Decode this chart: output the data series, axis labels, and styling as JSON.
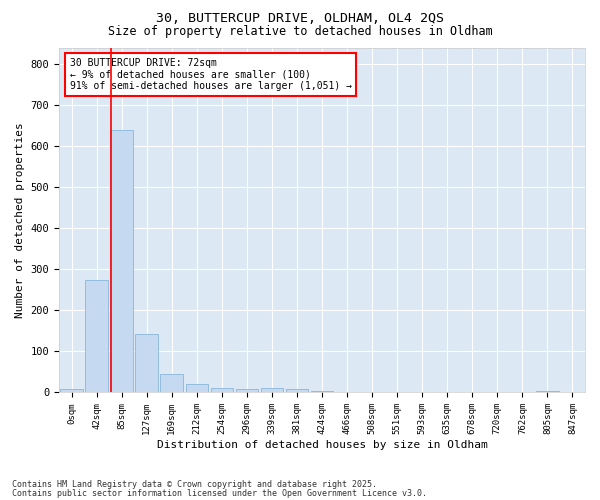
{
  "title1": "30, BUTTERCUP DRIVE, OLDHAM, OL4 2QS",
  "title2": "Size of property relative to detached houses in Oldham",
  "xlabel": "Distribution of detached houses by size in Oldham",
  "ylabel": "Number of detached properties",
  "footnote1": "Contains HM Land Registry data © Crown copyright and database right 2025.",
  "footnote2": "Contains public sector information licensed under the Open Government Licence v3.0.",
  "bar_categories": [
    "0sqm",
    "42sqm",
    "85sqm",
    "127sqm",
    "169sqm",
    "212sqm",
    "254sqm",
    "296sqm",
    "339sqm",
    "381sqm",
    "424sqm",
    "466sqm",
    "508sqm",
    "551sqm",
    "593sqm",
    "635sqm",
    "678sqm",
    "720sqm",
    "762sqm",
    "805sqm",
    "847sqm"
  ],
  "bar_values": [
    8,
    275,
    640,
    143,
    44,
    20,
    12,
    9,
    10,
    8,
    3,
    0,
    0,
    0,
    0,
    0,
    0,
    0,
    0,
    3,
    0
  ],
  "bar_color": "#c5d9f0",
  "bar_edge_color": "#7aadd4",
  "reference_line_color": "red",
  "annotation_text": "30 BUTTERCUP DRIVE: 72sqm\n← 9% of detached houses are smaller (100)\n91% of semi-detached houses are larger (1,051) →",
  "annotation_box_color": "white",
  "annotation_box_edge": "red",
  "ylim": [
    0,
    840
  ],
  "yticks": [
    0,
    100,
    200,
    300,
    400,
    500,
    600,
    700,
    800
  ],
  "fig_bg_color": "#ffffff",
  "plot_bg_color": "#dce9f5"
}
